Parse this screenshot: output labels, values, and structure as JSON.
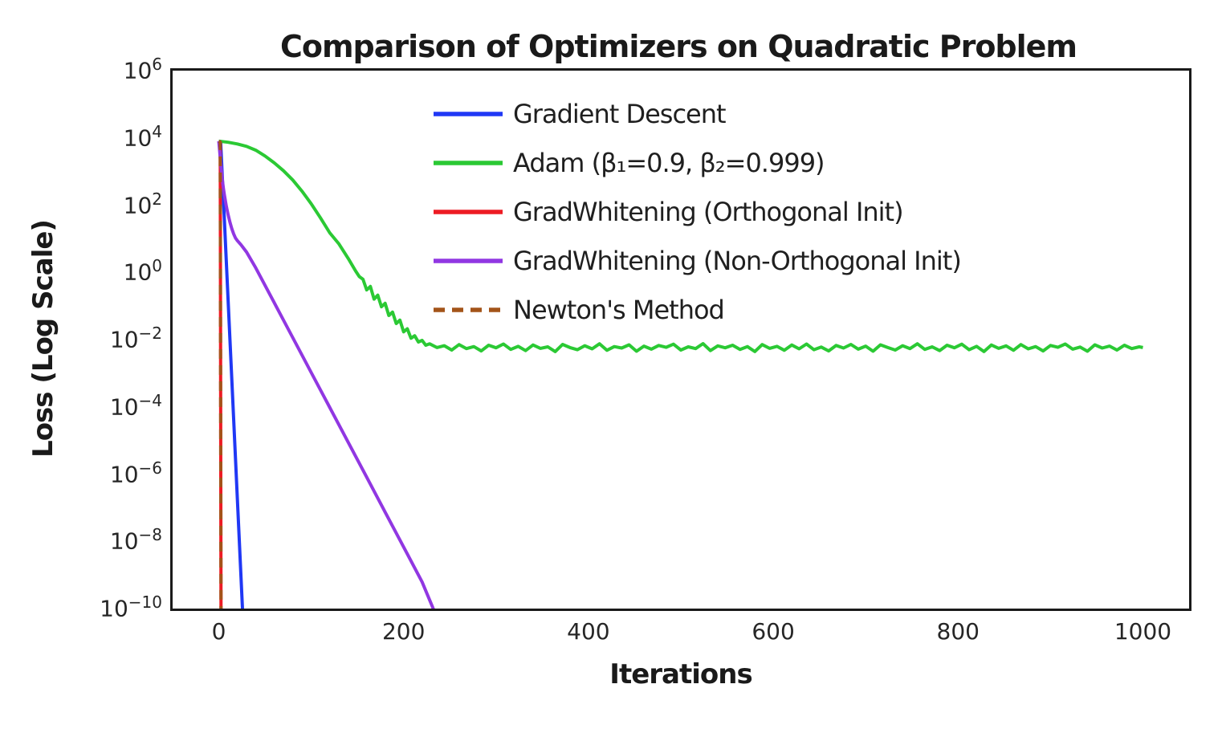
{
  "chart_data": {
    "type": "line",
    "title": "Comparison of Optimizers on Quadratic Problem",
    "xlabel": "Iterations",
    "ylabel": "Loss (Log Scale)",
    "x_ticks": [
      0,
      200,
      400,
      600,
      800,
      1000
    ],
    "y_ticks": [
      {
        "exp": 6,
        "sup": "6"
      },
      {
        "exp": 4,
        "sup": "4"
      },
      {
        "exp": 2,
        "sup": "2"
      },
      {
        "exp": 0,
        "sup": "0"
      },
      {
        "exp": -2,
        "sup": "−2"
      },
      {
        "exp": -4,
        "sup": "−4"
      },
      {
        "exp": -6,
        "sup": "−6"
      },
      {
        "exp": -8,
        "sup": "−8"
      },
      {
        "exp": -10,
        "sup": "−10"
      }
    ],
    "xlim": [
      -50,
      1050
    ],
    "ylog_range": [
      6,
      -10
    ],
    "grid": false,
    "legend_position": "upper center, frameless",
    "line_width": 4,
    "spine_color": "#1a1a1a",
    "text_color": "#1f1f1f",
    "series": [
      {
        "id": "gradient-descent",
        "name": "Gradient Descent",
        "color": "#2038f5",
        "dash": false,
        "points": [
          [
            0,
            8000
          ],
          [
            2,
            7800
          ],
          [
            4,
            550
          ],
          [
            6,
            35
          ],
          [
            8,
            2.3
          ],
          [
            10,
            0.15
          ],
          [
            12,
            0.01
          ],
          [
            14,
            0.00066
          ],
          [
            16,
            4.4e-05
          ],
          [
            18,
            2.9e-06
          ],
          [
            20,
            1.9e-07
          ],
          [
            22,
            1.26e-08
          ],
          [
            24,
            8.3e-10
          ],
          [
            26,
            5.5e-11
          ]
        ]
      },
      {
        "id": "adam",
        "name": "Adam (β₁=0.9, β₂=0.999)",
        "color": "#2bc934",
        "dash": false,
        "points": [
          [
            0,
            8000
          ],
          [
            10,
            7400
          ],
          [
            20,
            6600
          ],
          [
            30,
            5600
          ],
          [
            40,
            4300
          ],
          [
            50,
            2900
          ],
          [
            60,
            1800
          ],
          [
            70,
            1050
          ],
          [
            80,
            560
          ],
          [
            90,
            260
          ],
          [
            100,
            110
          ],
          [
            110,
            42
          ],
          [
            120,
            15
          ],
          [
            130,
            7
          ],
          [
            140,
            2.6
          ],
          [
            148,
            1.1
          ],
          [
            152,
            0.75
          ],
          [
            156,
            0.62
          ],
          [
            160,
            0.3
          ],
          [
            164,
            0.38
          ],
          [
            168,
            0.16
          ],
          [
            172,
            0.21
          ],
          [
            176,
            0.095
          ],
          [
            180,
            0.12
          ],
          [
            184,
            0.052
          ],
          [
            188,
            0.066
          ],
          [
            192,
            0.03
          ],
          [
            196,
            0.038
          ],
          [
            200,
            0.017
          ],
          [
            204,
            0.021
          ],
          [
            208,
            0.011
          ],
          [
            212,
            0.013
          ],
          [
            216,
            0.0085
          ],
          [
            220,
            0.0095
          ],
          [
            224,
            0.0068
          ],
          [
            228,
            0.0075
          ],
          [
            236,
            0.0058
          ],
          [
            244,
            0.0066
          ],
          [
            252,
            0.0049
          ],
          [
            260,
            0.0071
          ],
          [
            268,
            0.0054
          ],
          [
            276,
            0.0062
          ],
          [
            284,
            0.0046
          ],
          [
            292,
            0.0068
          ],
          [
            300,
            0.0057
          ],
          [
            308,
            0.0074
          ],
          [
            316,
            0.0051
          ],
          [
            324,
            0.0063
          ],
          [
            332,
            0.0047
          ],
          [
            340,
            0.0069
          ],
          [
            348,
            0.0055
          ],
          [
            356,
            0.0061
          ],
          [
            364,
            0.0044
          ],
          [
            372,
            0.0072
          ],
          [
            380,
            0.0058
          ],
          [
            388,
            0.005
          ],
          [
            396,
            0.0066
          ],
          [
            404,
            0.0053
          ],
          [
            412,
            0.0075
          ],
          [
            420,
            0.0048
          ],
          [
            428,
            0.0062
          ],
          [
            436,
            0.0056
          ],
          [
            444,
            0.007
          ],
          [
            452,
            0.0045
          ],
          [
            460,
            0.0064
          ],
          [
            468,
            0.0052
          ],
          [
            476,
            0.0067
          ],
          [
            484,
            0.0059
          ],
          [
            492,
            0.0073
          ],
          [
            500,
            0.0049
          ],
          [
            508,
            0.0061
          ],
          [
            516,
            0.0054
          ],
          [
            524,
            0.0076
          ],
          [
            532,
            0.0047
          ],
          [
            540,
            0.0065
          ],
          [
            548,
            0.0057
          ],
          [
            556,
            0.0068
          ],
          [
            564,
            0.0051
          ],
          [
            572,
            0.0062
          ],
          [
            580,
            0.0044
          ],
          [
            588,
            0.0071
          ],
          [
            596,
            0.0055
          ],
          [
            604,
            0.0063
          ],
          [
            612,
            0.0048
          ],
          [
            620,
            0.0069
          ],
          [
            628,
            0.0053
          ],
          [
            636,
            0.0074
          ],
          [
            644,
            0.005
          ],
          [
            652,
            0.006
          ],
          [
            660,
            0.0046
          ],
          [
            668,
            0.0067
          ],
          [
            676,
            0.0056
          ],
          [
            684,
            0.0072
          ],
          [
            692,
            0.0052
          ],
          [
            700,
            0.0064
          ],
          [
            708,
            0.0045
          ],
          [
            716,
            0.007
          ],
          [
            724,
            0.0058
          ],
          [
            732,
            0.0049
          ],
          [
            740,
            0.0066
          ],
          [
            748,
            0.0054
          ],
          [
            756,
            0.0075
          ],
          [
            764,
            0.0051
          ],
          [
            772,
            0.0061
          ],
          [
            780,
            0.0047
          ],
          [
            788,
            0.0068
          ],
          [
            796,
            0.0057
          ],
          [
            804,
            0.0073
          ],
          [
            812,
            0.005
          ],
          [
            820,
            0.0063
          ],
          [
            828,
            0.0044
          ],
          [
            836,
            0.0069
          ],
          [
            844,
            0.0055
          ],
          [
            852,
            0.0065
          ],
          [
            860,
            0.0048
          ],
          [
            868,
            0.0071
          ],
          [
            876,
            0.0053
          ],
          [
            884,
            0.0062
          ],
          [
            892,
            0.0046
          ],
          [
            900,
            0.0067
          ],
          [
            908,
            0.0059
          ],
          [
            916,
            0.0074
          ],
          [
            924,
            0.0052
          ],
          [
            932,
            0.006
          ],
          [
            940,
            0.0045
          ],
          [
            948,
            0.007
          ],
          [
            956,
            0.0056
          ],
          [
            964,
            0.0064
          ],
          [
            972,
            0.0049
          ],
          [
            980,
            0.0068
          ],
          [
            988,
            0.0054
          ],
          [
            996,
            0.0061
          ],
          [
            1000,
            0.0058
          ]
        ]
      },
      {
        "id": "gradwhitening-orthogonal",
        "name": "GradWhitening (Orthogonal Init)",
        "color": "#ed1c24",
        "dash": false,
        "points": [
          [
            0,
            8000
          ],
          [
            1.5,
            7500
          ],
          [
            2.5,
            1e-12
          ]
        ]
      },
      {
        "id": "gradwhitening-non-orthogonal",
        "name": "GradWhitening (Non-Orthogonal Init)",
        "color": "#9137e2",
        "dash": false,
        "points": [
          [
            0,
            8000
          ],
          [
            1,
            3800
          ],
          [
            2,
            1800
          ],
          [
            3,
            950
          ],
          [
            4,
            520
          ],
          [
            5,
            310
          ],
          [
            6,
            200
          ],
          [
            8,
            95
          ],
          [
            10,
            52
          ],
          [
            12,
            31
          ],
          [
            14,
            20
          ],
          [
            16,
            14
          ],
          [
            18,
            10.5
          ],
          [
            20,
            8.8
          ],
          [
            24,
            6.6
          ],
          [
            30,
            4.0
          ],
          [
            40,
            1.35
          ],
          [
            60,
            0.125
          ],
          [
            80,
            0.0115
          ],
          [
            100,
            0.00105
          ],
          [
            120,
            9.6e-05
          ],
          [
            140,
            8.8e-06
          ],
          [
            160,
            8.1e-07
          ],
          [
            180,
            7.4e-08
          ],
          [
            200,
            6.8e-09
          ],
          [
            220,
            6.2e-10
          ],
          [
            238,
            4e-11
          ]
        ]
      },
      {
        "id": "newtons-method",
        "name": "Newton's Method",
        "color": "#a35419",
        "dash": true,
        "points": [
          [
            0,
            8000
          ],
          [
            1.5,
            7500
          ],
          [
            2.5,
            1e-12
          ]
        ]
      }
    ]
  }
}
